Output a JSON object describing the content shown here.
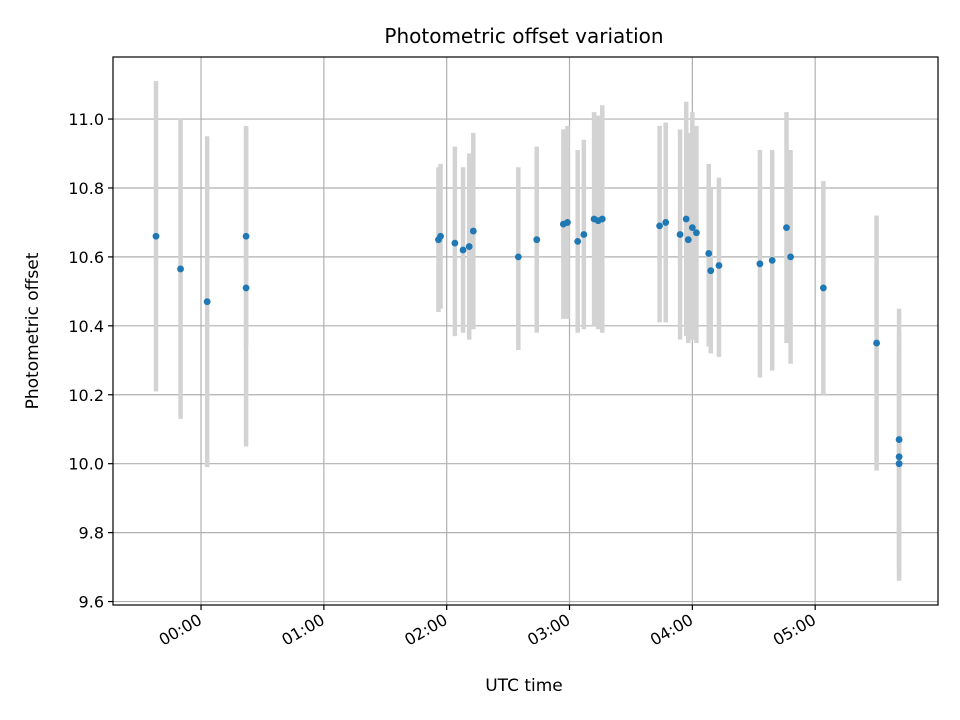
{
  "chart_data": {
    "type": "scatter",
    "title": "Photometric offset variation",
    "xlabel": "UTC time",
    "ylabel": "Photometric offset",
    "x_unit": "hours UTC",
    "xlim": [
      "23:17",
      "06:00"
    ],
    "ylim": [
      9.59,
      11.18
    ],
    "x_ticks": [
      "00:00",
      "01:00",
      "02:00",
      "03:00",
      "04:00",
      "05:00"
    ],
    "y_ticks": [
      "9.6",
      "9.8",
      "10.0",
      "10.2",
      "10.4",
      "10.6",
      "10.8",
      "11.0"
    ],
    "grid": true,
    "marker_color": "#1f77b4",
    "errorbar_color": "#d3d3d3",
    "points": [
      {
        "x": "23:38",
        "y": 10.66,
        "lo": 10.21,
        "hi": 11.11
      },
      {
        "x": "23:50",
        "y": 10.565,
        "lo": 10.13,
        "hi": 11.0
      },
      {
        "x": "00:03",
        "y": 10.47,
        "lo": 9.99,
        "hi": 10.95
      },
      {
        "x": "00:22",
        "y": 10.51,
        "lo": 10.05,
        "hi": 10.97
      },
      {
        "x": "00:22",
        "y": 10.66,
        "lo": 10.34,
        "hi": 10.98
      },
      {
        "x": "01:56",
        "y": 10.65,
        "lo": 10.44,
        "hi": 10.86
      },
      {
        "x": "01:57",
        "y": 10.66,
        "lo": 10.45,
        "hi": 10.87
      },
      {
        "x": "02:04",
        "y": 10.64,
        "lo": 10.37,
        "hi": 10.92
      },
      {
        "x": "02:08",
        "y": 10.62,
        "lo": 10.38,
        "hi": 10.86
      },
      {
        "x": "02:11",
        "y": 10.63,
        "lo": 10.36,
        "hi": 10.9
      },
      {
        "x": "02:13",
        "y": 10.675,
        "lo": 10.39,
        "hi": 10.96
      },
      {
        "x": "02:35",
        "y": 10.6,
        "lo": 10.33,
        "hi": 10.86
      },
      {
        "x": "02:44",
        "y": 10.65,
        "lo": 10.38,
        "hi": 10.92
      },
      {
        "x": "02:57",
        "y": 10.695,
        "lo": 10.42,
        "hi": 10.97
      },
      {
        "x": "02:59",
        "y": 10.7,
        "lo": 10.42,
        "hi": 10.98
      },
      {
        "x": "03:04",
        "y": 10.645,
        "lo": 10.38,
        "hi": 10.91
      },
      {
        "x": "03:07",
        "y": 10.665,
        "lo": 10.39,
        "hi": 10.94
      },
      {
        "x": "03:12",
        "y": 10.71,
        "lo": 10.4,
        "hi": 11.02
      },
      {
        "x": "03:14",
        "y": 10.705,
        "lo": 10.39,
        "hi": 11.01
      },
      {
        "x": "03:16",
        "y": 10.71,
        "lo": 10.38,
        "hi": 11.04
      },
      {
        "x": "03:44",
        "y": 10.69,
        "lo": 10.41,
        "hi": 10.98
      },
      {
        "x": "03:47",
        "y": 10.7,
        "lo": 10.41,
        "hi": 10.99
      },
      {
        "x": "03:54",
        "y": 10.665,
        "lo": 10.36,
        "hi": 10.97
      },
      {
        "x": "03:57",
        "y": 10.71,
        "lo": 10.37,
        "hi": 11.05
      },
      {
        "x": "03:58",
        "y": 10.65,
        "lo": 10.35,
        "hi": 10.96
      },
      {
        "x": "04:00",
        "y": 10.685,
        "lo": 10.36,
        "hi": 11.02
      },
      {
        "x": "04:02",
        "y": 10.67,
        "lo": 10.35,
        "hi": 10.98
      },
      {
        "x": "04:08",
        "y": 10.61,
        "lo": 10.34,
        "hi": 10.87
      },
      {
        "x": "04:09",
        "y": 10.56,
        "lo": 10.32,
        "hi": 10.8
      },
      {
        "x": "04:13",
        "y": 10.575,
        "lo": 10.31,
        "hi": 10.83
      },
      {
        "x": "04:33",
        "y": 10.58,
        "lo": 10.25,
        "hi": 10.91
      },
      {
        "x": "04:39",
        "y": 10.59,
        "lo": 10.27,
        "hi": 10.91
      },
      {
        "x": "04:46",
        "y": 10.685,
        "lo": 10.35,
        "hi": 11.02
      },
      {
        "x": "04:48",
        "y": 10.6,
        "lo": 10.29,
        "hi": 10.91
      },
      {
        "x": "05:04",
        "y": 10.51,
        "lo": 10.2,
        "hi": 10.82
      },
      {
        "x": "05:30",
        "y": 10.35,
        "lo": 9.98,
        "hi": 10.72
      },
      {
        "x": "05:41",
        "y": 10.07,
        "lo": 9.69,
        "hi": 10.45
      },
      {
        "x": "05:41",
        "y": 10.02,
        "lo": 9.66,
        "hi": 10.38
      },
      {
        "x": "05:41",
        "y": 10.0,
        "lo": 9.67,
        "hi": 10.33
      }
    ]
  }
}
